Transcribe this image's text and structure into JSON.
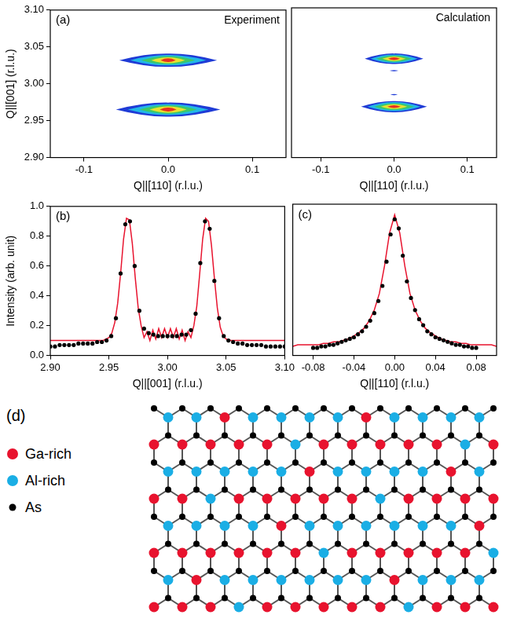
{
  "chart_data": [
    {
      "type": "contour",
      "panel": "(a)",
      "title": "Experiment",
      "x_label": "Q||[110] (r.l.u.)",
      "y_label": "Q||[001] (r.l.u.)",
      "xlim": [
        -0.14,
        0.14
      ],
      "xticks": [
        -0.1,
        {
          "value": 0,
          "label": "0.0"
        },
        0.1
      ],
      "ylim": [
        2.9,
        3.1
      ],
      "yticks": [
        {
          "value": 2.9,
          "label": "2.90"
        },
        2.95,
        {
          "value": 3.0,
          "label": "3.00"
        },
        3.05,
        {
          "value": 3.1,
          "label": "3.10"
        }
      ],
      "grid": false,
      "colors": [
        "#1f3bd6",
        "#22b8e6",
        "#3cc86a",
        "#e8e030",
        "#e8321e"
      ],
      "peaks": [
        {
          "x": 0,
          "y": 3.032,
          "half_width_x": [
            0.058,
            0.045,
            0.032,
            0.02,
            0.009
          ],
          "half_width_y": [
            0.009,
            0.007,
            0.0055,
            0.004,
            0.0025
          ]
        },
        {
          "x": 0,
          "y": 2.965,
          "half_width_x": [
            0.062,
            0.048,
            0.034,
            0.022,
            0.01
          ],
          "half_width_y": [
            0.0095,
            0.0075,
            0.0058,
            0.0042,
            0.0026
          ]
        }
      ]
    },
    {
      "type": "contour",
      "title": "Calculation",
      "x_label": "Q||[110] (r.l.u.)",
      "tick_labels": "x",
      "xlim": [
        -0.14,
        0.14
      ],
      "xticks": [
        -0.1,
        {
          "value": 0,
          "label": "0.0"
        },
        0.1
      ],
      "ylim": [
        2.9,
        3.1
      ],
      "yticks": [
        {
          "value": 2.9,
          "label": "2.90"
        },
        2.95,
        {
          "value": 3.0,
          "label": "3.00"
        },
        3.05,
        {
          "value": 3.1,
          "label": "3.10"
        }
      ],
      "grid": false,
      "colors": [
        "#1f3bd6",
        "#22b8e6",
        "#3cc86a",
        "#e8e030",
        "#e8321e"
      ],
      "peaks": [
        {
          "x": 0,
          "y": 3.032,
          "half_width_x": [
            0.04,
            0.032,
            0.024,
            0.016,
            0.008
          ],
          "half_width_y": [
            0.007,
            0.0055,
            0.0042,
            0.003,
            0.0018
          ]
        },
        {
          "x": 0,
          "y": 2.968,
          "half_width_x": [
            0.045,
            0.036,
            0.027,
            0.018,
            0.009
          ],
          "half_width_y": [
            0.0075,
            0.006,
            0.0045,
            0.0032,
            0.0019
          ]
        },
        {
          "x": 0,
          "y": 3.016,
          "half_width_x": [
            0.006
          ],
          "half_width_y": [
            0.0008
          ]
        },
        {
          "x": 0,
          "y": 2.984,
          "half_width_x": [
            0.005
          ],
          "half_width_y": [
            0.0008
          ]
        }
      ]
    },
    {
      "type": "scatter",
      "panel": "(b)",
      "x_label": "Q||[001] (r.l.u.)",
      "y_label": "Intensity (arb. unit)",
      "xlim": [
        2.9,
        3.1
      ],
      "xticks": [
        {
          "value": 2.9,
          "label": "2.90"
        },
        2.95,
        {
          "value": 3.0,
          "label": "3.00"
        },
        3.05,
        {
          "value": 3.1,
          "label": "3.10"
        }
      ],
      "ylim": [
        0,
        1
      ],
      "yticks": [
        {
          "value": 0,
          "label": "0.0"
        },
        0.2,
        0.4,
        0.6,
        0.8,
        {
          "value": 1,
          "label": "1.0"
        }
      ],
      "grid": false,
      "series": [
        {
          "type": "scatter",
          "marker": "circle",
          "line_style": "none",
          "color": "#000000",
          "x": [
            2.9,
            2.904,
            2.908,
            2.912,
            2.916,
            2.92,
            2.924,
            2.928,
            2.932,
            2.936,
            2.94,
            2.944,
            2.948,
            2.952,
            2.956,
            2.96,
            2.964,
            2.968,
            2.972,
            2.976,
            2.98,
            2.984,
            2.988,
            2.992,
            2.996,
            3.0,
            3.004,
            3.008,
            3.012,
            3.016,
            3.02,
            3.024,
            3.028,
            3.032,
            3.036,
            3.04,
            3.044,
            3.048,
            3.052,
            3.056,
            3.06,
            3.064,
            3.068,
            3.072,
            3.076,
            3.08,
            3.084,
            3.088,
            3.092,
            3.096,
            3.1
          ],
          "values": [
            0.06,
            0.06,
            0.07,
            0.07,
            0.07,
            0.07,
            0.08,
            0.08,
            0.08,
            0.08,
            0.09,
            0.09,
            0.1,
            0.13,
            0.25,
            0.55,
            0.88,
            0.9,
            0.6,
            0.3,
            0.18,
            0.15,
            0.14,
            0.13,
            0.13,
            0.13,
            0.13,
            0.13,
            0.14,
            0.14,
            0.17,
            0.28,
            0.62,
            0.9,
            0.85,
            0.5,
            0.25,
            0.13,
            0.1,
            0.09,
            0.08,
            0.08,
            0.07,
            0.07,
            0.07,
            0.07,
            0.06,
            0.06,
            0.06,
            0.06,
            0.06
          ]
        },
        {
          "type": "line",
          "marker": "none",
          "line_style": "solid",
          "color": "#e8132e",
          "x": [
            2.9,
            2.9025,
            2.905,
            2.9075,
            2.91,
            2.9125,
            2.915,
            2.9175,
            2.92,
            2.9225,
            2.925,
            2.9275,
            2.93,
            2.9325,
            2.935,
            2.9375,
            2.94,
            2.9425,
            2.945,
            2.9475,
            2.95,
            2.9525,
            2.955,
            2.9575,
            2.96,
            2.9625,
            2.965,
            2.9675,
            2.97,
            2.9725,
            2.975,
            2.9775,
            2.98,
            2.9825,
            2.985,
            2.9875,
            2.99,
            2.9925,
            2.995,
            2.9975,
            3.0,
            3.0025,
            3.005,
            3.0075,
            3.01,
            3.0125,
            3.015,
            3.0175,
            3.02,
            3.0225,
            3.025,
            3.0275,
            3.03,
            3.0325,
            3.035,
            3.0375,
            3.04,
            3.0425,
            3.045,
            3.0475,
            3.05,
            3.0525,
            3.055,
            3.0575,
            3.06,
            3.0625,
            3.065,
            3.0675,
            3.07,
            3.0725,
            3.075,
            3.0775,
            3.08,
            3.0825,
            3.085,
            3.0875,
            3.09,
            3.0925,
            3.095,
            3.0975,
            3.1
          ],
          "values": [
            0.1,
            0.1,
            0.1,
            0.1,
            0.1,
            0.1,
            0.1,
            0.1,
            0.1,
            0.1,
            0.1,
            0.1,
            0.1,
            0.1,
            0.1,
            0.1,
            0.1,
            0.1,
            0.1,
            0.11,
            0.12,
            0.15,
            0.22,
            0.35,
            0.55,
            0.78,
            0.92,
            0.91,
            0.75,
            0.52,
            0.32,
            0.2,
            0.12,
            0.16,
            0.1,
            0.17,
            0.11,
            0.18,
            0.12,
            0.18,
            0.12,
            0.18,
            0.12,
            0.18,
            0.11,
            0.17,
            0.1,
            0.16,
            0.12,
            0.2,
            0.33,
            0.55,
            0.78,
            0.92,
            0.9,
            0.74,
            0.52,
            0.32,
            0.19,
            0.13,
            0.11,
            0.1,
            0.1,
            0.1,
            0.1,
            0.1,
            0.1,
            0.1,
            0.1,
            0.1,
            0.1,
            0.1,
            0.1,
            0.1,
            0.1,
            0.1,
            0.1,
            0.1,
            0.1,
            0.1,
            0.1
          ]
        }
      ]
    },
    {
      "type": "scatter",
      "panel": "(c)",
      "x_label": "Q||[110] (r.l.u.)",
      "tick_labels": "x",
      "xlim": [
        -0.1,
        0.1
      ],
      "xticks": [
        -0.08,
        -0.04,
        {
          "value": 0,
          "label": "0.00"
        },
        0.04,
        0.08
      ],
      "ylim": [
        0,
        1
      ],
      "yticks": [
        {
          "value": 0,
          "label": "0.0"
        },
        0.2,
        0.4,
        0.6,
        0.8,
        {
          "value": 1,
          "label": "1.0"
        }
      ],
      "grid": false,
      "series": [
        {
          "type": "scatter",
          "marker": "circle",
          "line_style": "none",
          "color": "#000000",
          "x": [
            -0.08,
            -0.076,
            -0.072,
            -0.068,
            -0.064,
            -0.06,
            -0.056,
            -0.052,
            -0.048,
            -0.044,
            -0.04,
            -0.036,
            -0.032,
            -0.028,
            -0.024,
            -0.02,
            -0.016,
            -0.012,
            -0.008,
            -0.004,
            0,
            0.004,
            0.008,
            0.012,
            0.016,
            0.02,
            0.024,
            0.028,
            0.032,
            0.036,
            0.04,
            0.044,
            0.048,
            0.052,
            0.056,
            0.06,
            0.064,
            0.068,
            0.072,
            0.076,
            0.08
          ],
          "values": [
            0.05,
            0.05,
            0.06,
            0.06,
            0.07,
            0.07,
            0.08,
            0.09,
            0.1,
            0.11,
            0.12,
            0.14,
            0.16,
            0.19,
            0.23,
            0.28,
            0.36,
            0.46,
            0.62,
            0.8,
            0.9,
            0.84,
            0.66,
            0.49,
            0.38,
            0.3,
            0.24,
            0.2,
            0.16,
            0.14,
            0.12,
            0.11,
            0.1,
            0.09,
            0.08,
            0.07,
            0.07,
            0.06,
            0.06,
            0.05,
            0.05
          ]
        },
        {
          "type": "line",
          "marker": "none",
          "line_style": "solid",
          "color": "#e8132e",
          "x": [
            -0.1,
            -0.095,
            -0.09,
            -0.085,
            -0.08,
            -0.075,
            -0.07,
            -0.065,
            -0.06,
            -0.055,
            -0.05,
            -0.045,
            -0.04,
            -0.035,
            -0.03,
            -0.025,
            -0.02,
            -0.015,
            -0.01,
            -0.005,
            0,
            0.005,
            0.01,
            0.015,
            0.02,
            0.025,
            0.03,
            0.035,
            0.04,
            0.045,
            0.05,
            0.055,
            0.06,
            0.065,
            0.07,
            0.075,
            0.08,
            0.085,
            0.09,
            0.095,
            0.1
          ],
          "values": [
            0.06,
            0.07,
            0.07,
            0.07,
            0.07,
            0.07,
            0.08,
            0.08,
            0.09,
            0.09,
            0.1,
            0.11,
            0.13,
            0.15,
            0.18,
            0.23,
            0.3,
            0.41,
            0.59,
            0.81,
            0.93,
            0.81,
            0.59,
            0.41,
            0.3,
            0.23,
            0.18,
            0.15,
            0.13,
            0.11,
            0.1,
            0.09,
            0.09,
            0.08,
            0.08,
            0.07,
            0.07,
            0.07,
            0.07,
            0.07,
            0.06
          ]
        }
      ]
    }
  ],
  "diagram": {
    "label": "(d)",
    "legend": [
      {
        "label": "Ga-rich",
        "color": "#e8132e"
      },
      {
        "label": "Al-rich",
        "color": "#1aaee5"
      },
      {
        "label": "As",
        "color": "#000000"
      }
    ],
    "cation_rows": [
      [
        1,
        1,
        0,
        1,
        1,
        1,
        1,
        0,
        1,
        1,
        1,
        1
      ],
      [
        0,
        0,
        0,
        0,
        0,
        1,
        0,
        0,
        0,
        0,
        0,
        1,
        0
      ],
      [
        1,
        1,
        1,
        1,
        1,
        0,
        1,
        1,
        1,
        1,
        0,
        1
      ],
      [
        0,
        0,
        1,
        0,
        0,
        0,
        0,
        0,
        1,
        0,
        0,
        0,
        0
      ],
      [
        1,
        1,
        1,
        1,
        0,
        1,
        1,
        1,
        1,
        1,
        1,
        0
      ],
      [
        0,
        0,
        0,
        0,
        0,
        0,
        1,
        0,
        0,
        0,
        0,
        0,
        1
      ],
      [
        1,
        0,
        1,
        1,
        1,
        1,
        1,
        1,
        0,
        1,
        1,
        1
      ],
      [
        0,
        0,
        0,
        1,
        0,
        0,
        0,
        0,
        0,
        1,
        0,
        0,
        0
      ]
    ]
  }
}
